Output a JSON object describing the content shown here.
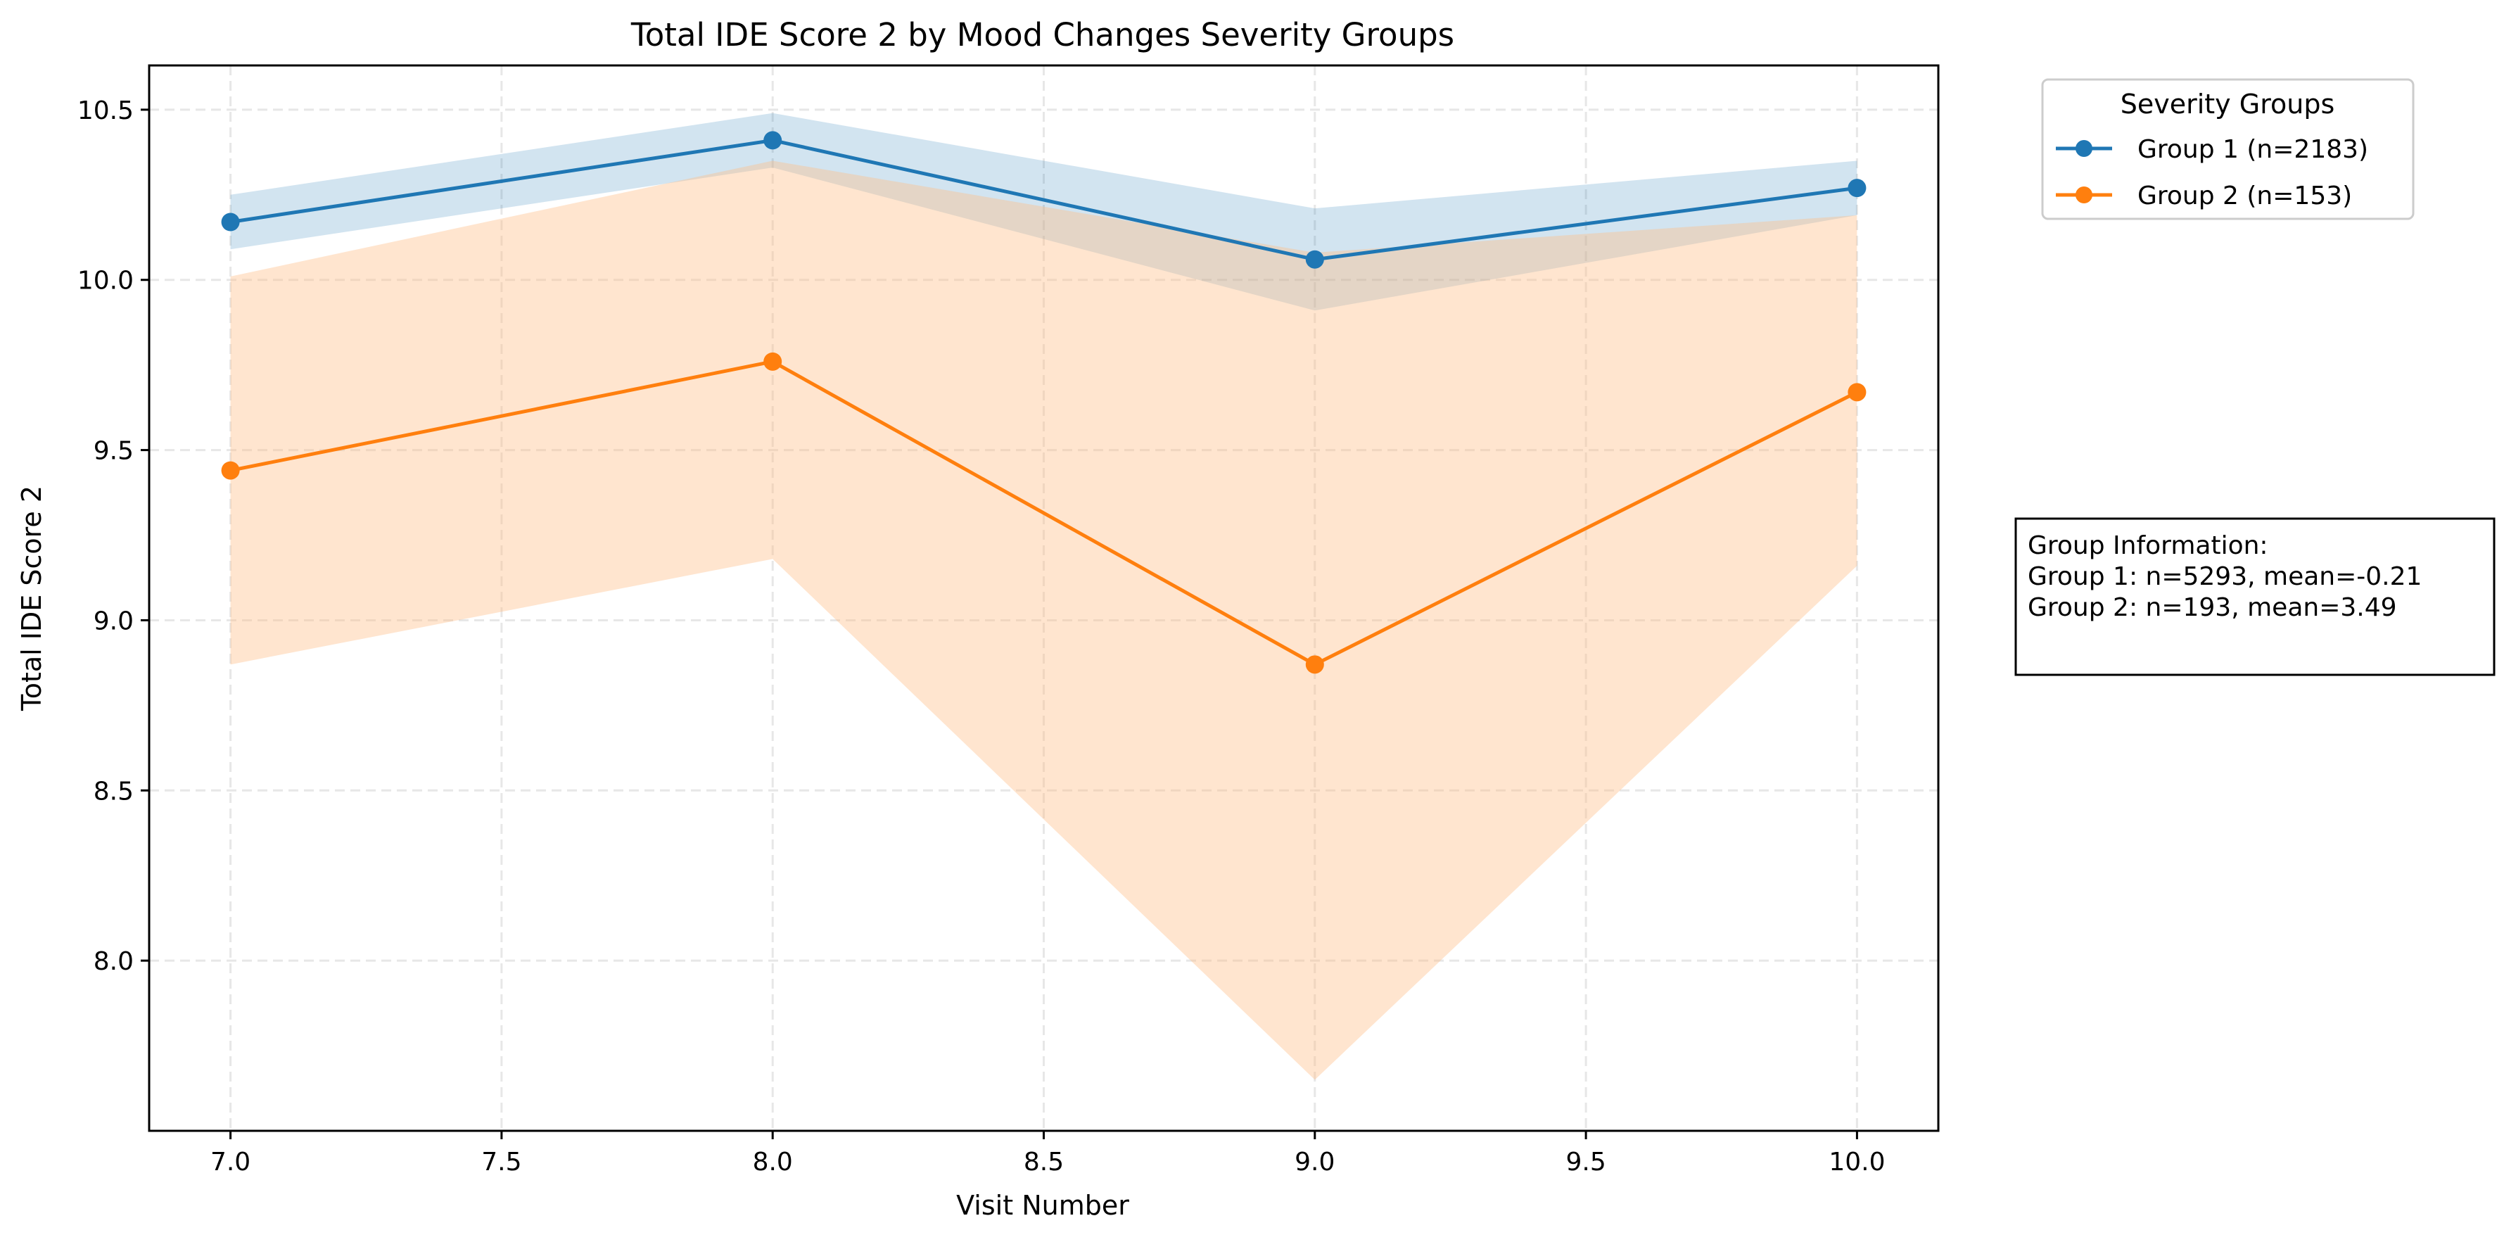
{
  "chart_data": {
    "type": "line",
    "title": "Total IDE Score 2 by Mood Changes Severity Groups",
    "xlabel": "Visit Number",
    "ylabel": "Total IDE Score 2",
    "xlim": [
      6.85,
      10.15
    ],
    "ylim": [
      7.5,
      10.63
    ],
    "xticks": [
      "7.0",
      "7.5",
      "8.0",
      "8.5",
      "9.0",
      "9.5",
      "10.0"
    ],
    "yticks": [
      "8.0",
      "8.5",
      "9.0",
      "9.5",
      "10.0",
      "10.5"
    ],
    "grid": true,
    "legend": {
      "title": "Severity Groups",
      "placement": "outside-top-right"
    },
    "x": [
      7,
      8,
      9,
      10
    ],
    "series": [
      {
        "name": "Group 1 (n=2183)",
        "color": "#1f77b4",
        "band_color": "#1f77b4",
        "values": [
          10.17,
          10.41,
          10.06,
          10.27
        ],
        "band_upper": [
          10.25,
          10.49,
          10.21,
          10.35
        ],
        "band_lower": [
          10.09,
          10.33,
          9.91,
          10.19
        ]
      },
      {
        "name": "Group 2 (n=153)",
        "color": "#ff7f0e",
        "band_color": "#ffbe86",
        "values": [
          9.44,
          9.76,
          8.87,
          9.67
        ],
        "band_upper": [
          10.01,
          10.35,
          10.08,
          10.19
        ],
        "band_lower": [
          8.87,
          9.18,
          7.65,
          9.16
        ]
      }
    ],
    "annotation": {
      "lines": [
        "Group Information:",
        "Group 1: n=5293, mean=-0.21",
        "Group 2: n=193, mean=3.49"
      ]
    }
  }
}
